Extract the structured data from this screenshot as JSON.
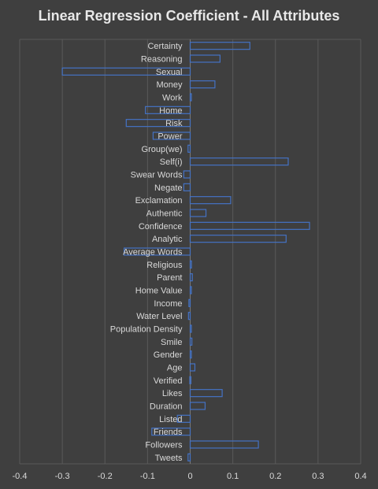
{
  "chart_data": {
    "type": "bar",
    "orientation": "horizontal",
    "title": "Linear Regression Coefficient - All Attributes",
    "xlabel": "",
    "ylabel": "",
    "xlim": [
      -0.4,
      0.4
    ],
    "xticks": [
      -0.4,
      -0.3,
      -0.2,
      -0.1,
      0,
      0.1,
      0.2,
      0.3,
      0.4
    ],
    "grid": true,
    "legend": "none",
    "bar_color": "#4472c4",
    "background": "#404040",
    "categories": [
      "Certainty",
      "Reasoning",
      "Sexual",
      "Money",
      "Work",
      "Home",
      "Risk",
      "Power",
      "Group(we)",
      "Self(i)",
      "Swear Words",
      "Negate",
      "Exclamation",
      "Authentic",
      "Confidence",
      "Analytic",
      "Average Words",
      "Religious",
      "Parent",
      "Home Value",
      "Income",
      "Water Level",
      "Population Density",
      "Smile",
      "Gender",
      "Age",
      "Verified",
      "Likes",
      "Duration",
      "Listed",
      "Friends",
      "Followers",
      "Tweets"
    ],
    "values": [
      0.14,
      0.07,
      -0.3,
      0.058,
      0,
      -0.105,
      -0.15,
      -0.087,
      -0.005,
      0.23,
      -0.015,
      -0.015,
      0.095,
      0.037,
      0.28,
      0.225,
      -0.155,
      0.003,
      0.005,
      0.002,
      -0.003,
      -0.004,
      0.002,
      0.004,
      0.001,
      0.011,
      -0.001,
      0.075,
      0.035,
      -0.03,
      -0.09,
      0.16,
      -0.005
    ]
  }
}
